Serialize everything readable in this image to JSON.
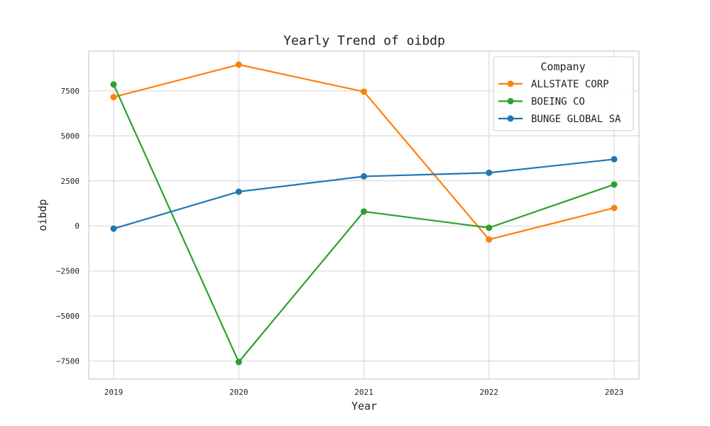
{
  "chart_data": {
    "type": "line",
    "title": "Yearly Trend of oibdp",
    "xlabel": "Year",
    "ylabel": "oibdp",
    "x": [
      "2019",
      "2020",
      "2021",
      "2022",
      "2023"
    ],
    "ylim": [
      -8500,
      9700
    ],
    "yticks": [
      -7500,
      -5000,
      -2500,
      0,
      2500,
      5000,
      7500
    ],
    "ytick_labels": [
      "−7500",
      "−5000",
      "−2500",
      "0",
      "2500",
      "5000",
      "7500"
    ],
    "grid": true,
    "legend": {
      "title": "Company",
      "placement": "top-right"
    },
    "series": [
      {
        "name": "ALLSTATE CORP",
        "color": "#ff7f0e",
        "values": [
          7150,
          8950,
          7450,
          -750,
          1000
        ]
      },
      {
        "name": "BOEING CO",
        "color": "#2ca02c",
        "values": [
          7850,
          -7550,
          800,
          -100,
          2300
        ]
      },
      {
        "name": "BUNGE GLOBAL SA",
        "color": "#1f77b4",
        "values": [
          -150,
          1900,
          2750,
          2950,
          3700
        ]
      }
    ]
  }
}
